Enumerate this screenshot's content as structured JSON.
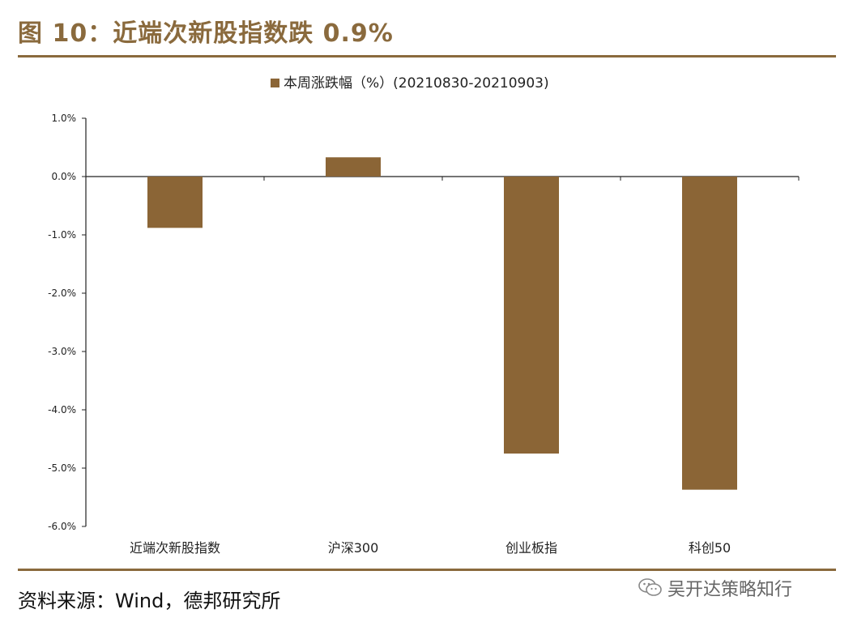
{
  "header": {
    "title": "图 10：近端次新股指数跌 0.9%"
  },
  "footer": {
    "source": "资料来源：Wind，德邦研究所",
    "brand": "吴开达策略知行"
  },
  "colors": {
    "accent": "#8a6a3d",
    "bar": "#8b6536"
  },
  "chart_data": {
    "type": "bar",
    "categories": [
      "近端次新股指数",
      "沪深300",
      "创业板指",
      "科创50"
    ],
    "series": [
      {
        "name": "本周涨跌幅（%）(20210830-20210903)",
        "values": [
          -0.88,
          0.33,
          -4.75,
          -5.37
        ]
      }
    ],
    "yticks": [
      "1.0%",
      "0.0%",
      "-1.0%",
      "-2.0%",
      "-3.0%",
      "-4.0%",
      "-5.0%",
      "-6.0%"
    ],
    "ylim": [
      -6,
      1
    ],
    "legend_position": "top-center",
    "grid": false
  }
}
